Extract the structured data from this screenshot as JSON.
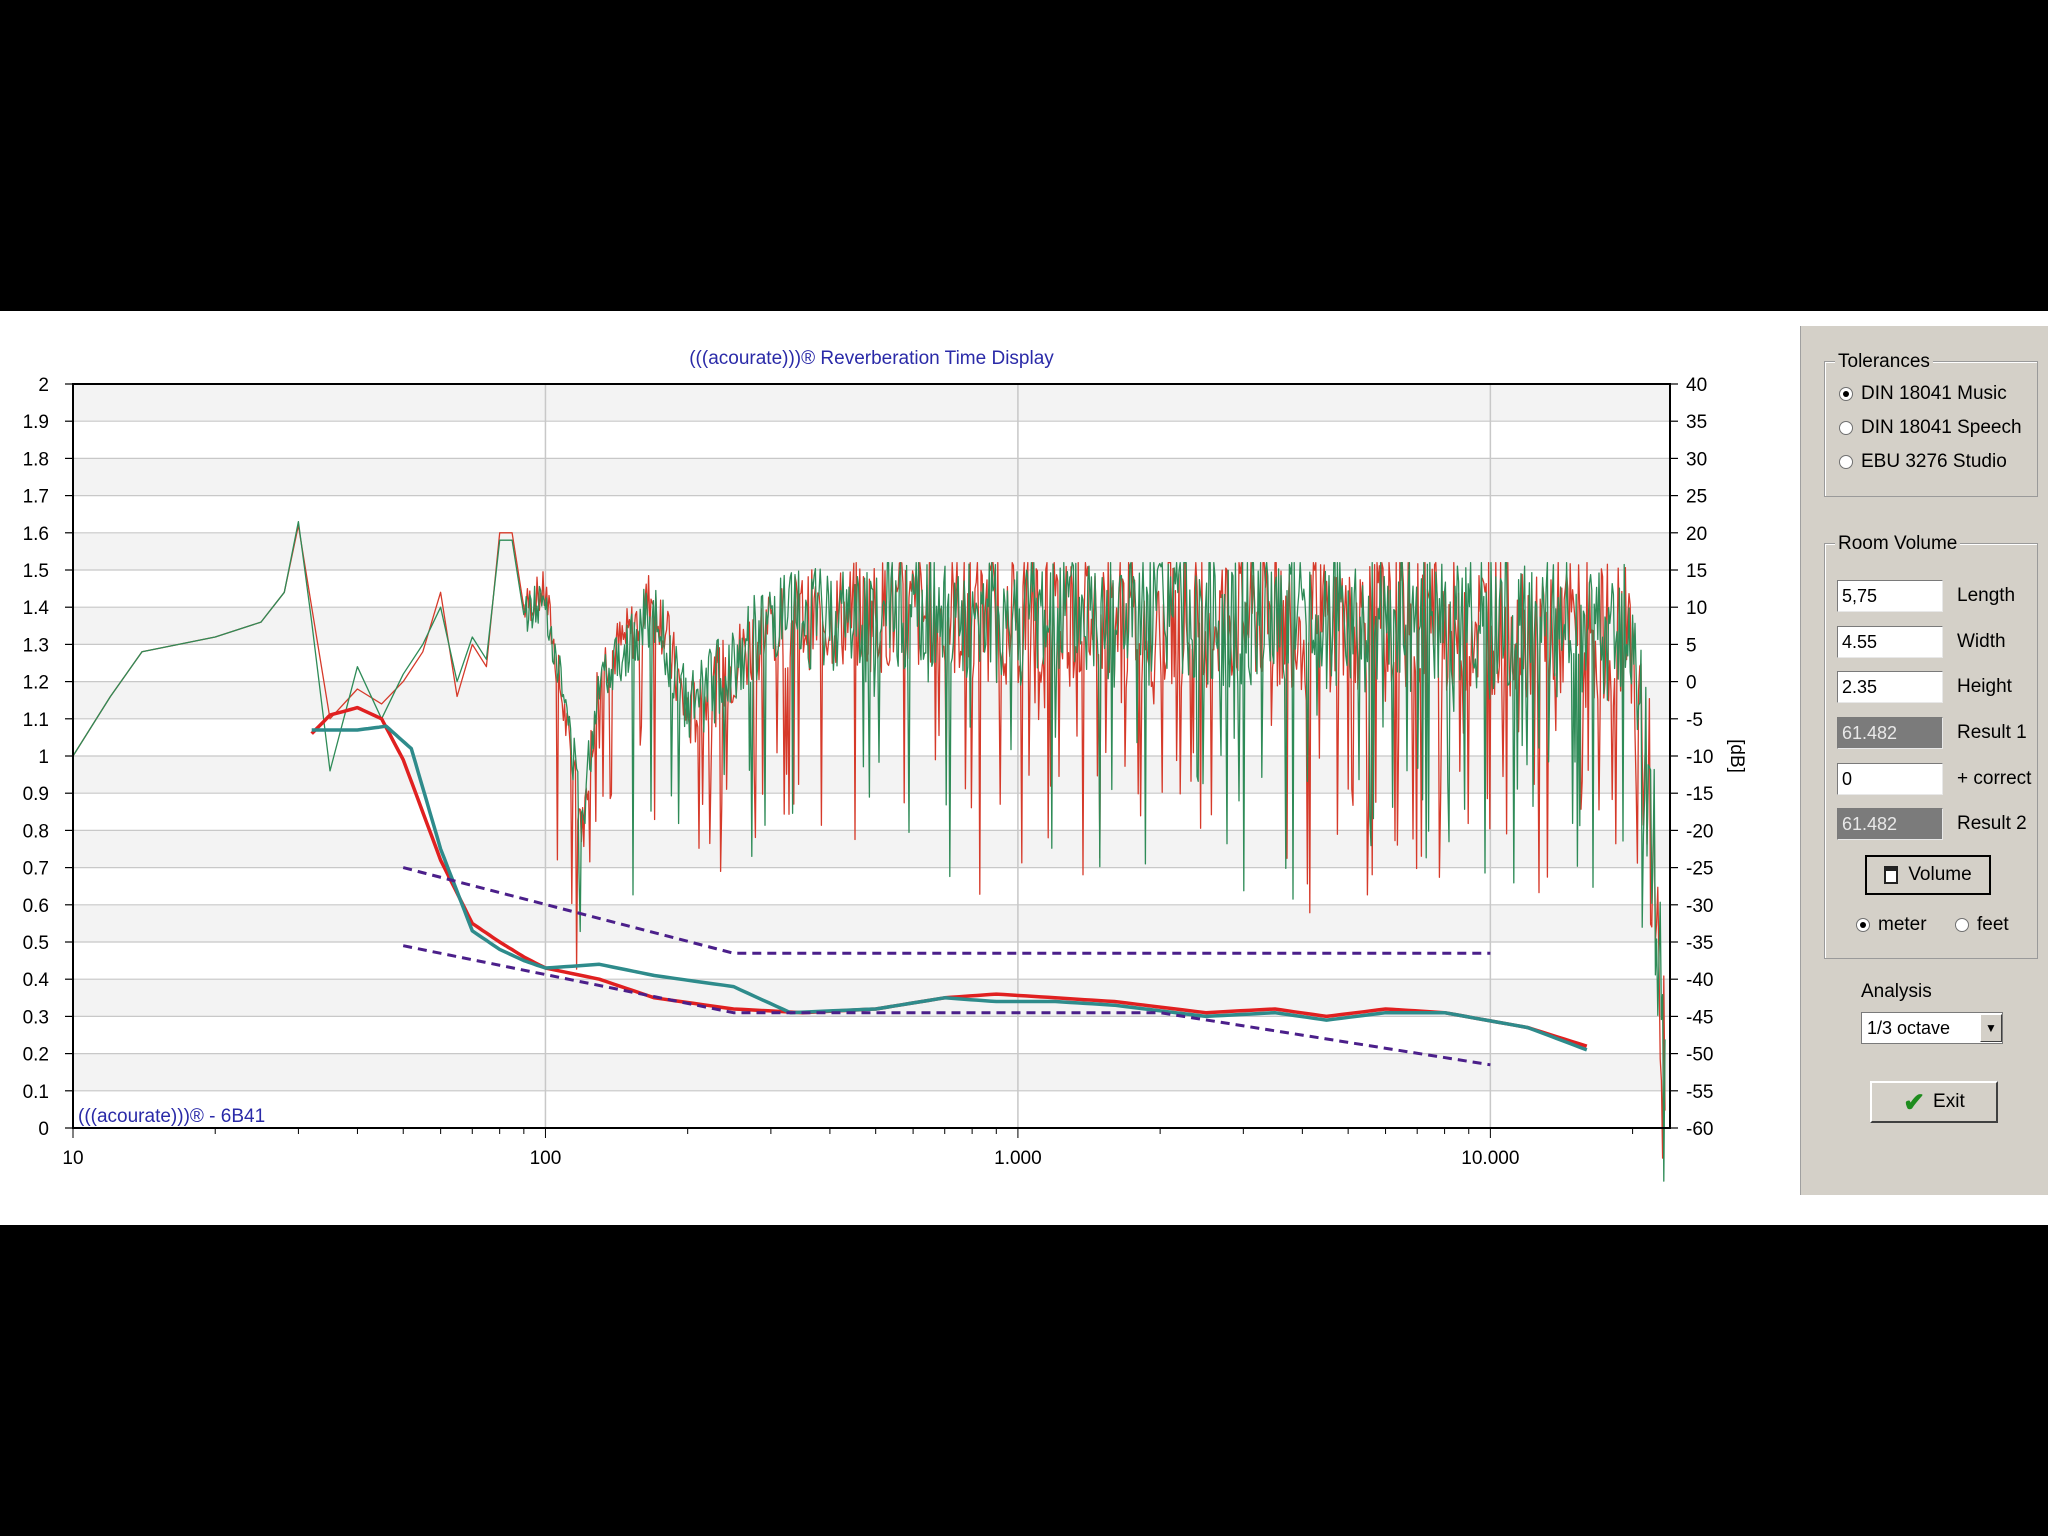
{
  "chart_data": {
    "type": "line",
    "title": "(((acourate)))® Reverberation Time Display",
    "watermark": "(((acourate)))® - 6B41",
    "x_scale": "log",
    "xlim": [
      10,
      24000
    ],
    "x_ticks": [
      {
        "value": 10,
        "label": "10"
      },
      {
        "value": 100,
        "label": "100"
      },
      {
        "value": 1000,
        "label": "1.000"
      },
      {
        "value": 10000,
        "label": "10.000"
      }
    ],
    "y_left": {
      "lim": [
        0,
        2
      ],
      "ticks": [
        "0",
        "0.1",
        "0.2",
        "0.3",
        "0.4",
        "0.5",
        "0.6",
        "0.7",
        "0.8",
        "0.9",
        "1",
        "1.1",
        "1.2",
        "1.3",
        "1.4",
        "1.5",
        "1.6",
        "1.7",
        "1.8",
        "1.9",
        "2"
      ]
    },
    "y_right": {
      "lim": [
        -60,
        40
      ],
      "label": "[dB]",
      "ticks": [
        "-60",
        "-55",
        "-50",
        "-45",
        "-40",
        "-35",
        "-30",
        "-25",
        "-20",
        "-15",
        "-10",
        "-5",
        "0",
        "5",
        "10",
        "15",
        "20",
        "25",
        "30",
        "35",
        "40"
      ]
    },
    "grid": true,
    "series": [
      {
        "axis": "left",
        "color": "#e02020",
        "width": 3.5,
        "points": [
          [
            32,
            1.06
          ],
          [
            35,
            1.11
          ],
          [
            40,
            1.13
          ],
          [
            45,
            1.1
          ],
          [
            50,
            0.99
          ],
          [
            60,
            0.72
          ],
          [
            70,
            0.55
          ],
          [
            80,
            0.5
          ],
          [
            90,
            0.46
          ],
          [
            100,
            0.43
          ],
          [
            130,
            0.4
          ],
          [
            170,
            0.35
          ],
          [
            250,
            0.32
          ],
          [
            350,
            0.31
          ],
          [
            500,
            0.32
          ],
          [
            700,
            0.35
          ],
          [
            900,
            0.36
          ],
          [
            1200,
            0.35
          ],
          [
            1600,
            0.34
          ],
          [
            2500,
            0.31
          ],
          [
            3500,
            0.32
          ],
          [
            4500,
            0.3
          ],
          [
            6000,
            0.32
          ],
          [
            8000,
            0.31
          ],
          [
            12000,
            0.27
          ],
          [
            16000,
            0.22
          ]
        ]
      },
      {
        "axis": "left",
        "color": "#2e8b8b",
        "width": 3.5,
        "points": [
          [
            32,
            1.07
          ],
          [
            40,
            1.07
          ],
          [
            46,
            1.08
          ],
          [
            52,
            1.02
          ],
          [
            60,
            0.75
          ],
          [
            70,
            0.53
          ],
          [
            80,
            0.48
          ],
          [
            90,
            0.45
          ],
          [
            100,
            0.43
          ],
          [
            130,
            0.44
          ],
          [
            170,
            0.41
          ],
          [
            250,
            0.38
          ],
          [
            330,
            0.31
          ],
          [
            500,
            0.32
          ],
          [
            700,
            0.35
          ],
          [
            900,
            0.34
          ],
          [
            1200,
            0.34
          ],
          [
            1600,
            0.33
          ],
          [
            2500,
            0.3
          ],
          [
            3500,
            0.31
          ],
          [
            4500,
            0.29
          ],
          [
            6000,
            0.31
          ],
          [
            8000,
            0.31
          ],
          [
            12000,
            0.27
          ],
          [
            16000,
            0.21
          ]
        ]
      },
      {
        "axis": "left",
        "color": "#4b1f8a",
        "dash": true,
        "width": 3,
        "points": [
          [
            50,
            0.7
          ],
          [
            250,
            0.47
          ],
          [
            10000,
            0.47
          ]
        ]
      },
      {
        "axis": "left",
        "color": "#4b1f8a",
        "dash": true,
        "width": 3,
        "points": [
          [
            50,
            0.49
          ],
          [
            250,
            0.31
          ],
          [
            2000,
            0.31
          ],
          [
            10000,
            0.17
          ]
        ]
      },
      {
        "axis": "right",
        "color": "#d63a2a",
        "width": 1.3,
        "noise": true,
        "seed": 7,
        "noise_from": 90,
        "points": [
          [
            10,
            -10
          ],
          [
            12,
            -2
          ],
          [
            14,
            4
          ],
          [
            20,
            6
          ],
          [
            25,
            8
          ],
          [
            28,
            12
          ],
          [
            30,
            21
          ],
          [
            32,
            10
          ],
          [
            35,
            -5
          ],
          [
            40,
            -1
          ],
          [
            45,
            -3
          ],
          [
            50,
            0
          ],
          [
            55,
            4
          ],
          [
            60,
            12
          ],
          [
            65,
            -2
          ],
          [
            70,
            5
          ],
          [
            75,
            2
          ],
          [
            80,
            20
          ],
          [
            85,
            20
          ],
          [
            90,
            10
          ],
          [
            100,
            12
          ],
          [
            110,
            -5
          ],
          [
            120,
            -20
          ],
          [
            130,
            2
          ],
          [
            150,
            6
          ],
          [
            170,
            12
          ],
          [
            200,
            -5
          ],
          [
            300,
            8
          ],
          [
            500,
            9
          ],
          [
            1000,
            9
          ],
          [
            3000,
            9
          ],
          [
            6000,
            8
          ],
          [
            10000,
            8
          ],
          [
            15000,
            7
          ],
          [
            20000,
            6
          ],
          [
            22000,
            -20
          ],
          [
            23500,
            -60
          ]
        ]
      },
      {
        "axis": "right",
        "color": "#2e8b57",
        "width": 1.3,
        "noise": true,
        "seed": 13,
        "noise_from": 90,
        "points": [
          [
            10,
            -10
          ],
          [
            12,
            -2
          ],
          [
            14,
            4
          ],
          [
            20,
            6
          ],
          [
            25,
            8
          ],
          [
            28,
            12
          ],
          [
            30,
            21.5
          ],
          [
            32,
            8
          ],
          [
            35,
            -12
          ],
          [
            40,
            2
          ],
          [
            45,
            -5
          ],
          [
            50,
            1
          ],
          [
            55,
            5
          ],
          [
            60,
            10
          ],
          [
            65,
            0
          ],
          [
            70,
            6
          ],
          [
            75,
            3
          ],
          [
            80,
            19
          ],
          [
            85,
            19
          ],
          [
            90,
            9
          ],
          [
            100,
            11
          ],
          [
            110,
            -3
          ],
          [
            120,
            -18
          ],
          [
            130,
            1
          ],
          [
            150,
            5
          ],
          [
            170,
            10
          ],
          [
            200,
            -4
          ],
          [
            300,
            8
          ],
          [
            500,
            9
          ],
          [
            1000,
            9
          ],
          [
            3000,
            9
          ],
          [
            6000,
            8
          ],
          [
            10000,
            8
          ],
          [
            15000,
            7
          ],
          [
            20000,
            6
          ],
          [
            22000,
            -20
          ],
          [
            23500,
            -60
          ]
        ]
      }
    ]
  },
  "panel": {
    "tolerances": {
      "title": "Tolerances",
      "options": [
        {
          "label": "DIN 18041 Music",
          "checked": true
        },
        {
          "label": "DIN 18041 Speech",
          "checked": false
        },
        {
          "label": "EBU 3276 Studio",
          "checked": false
        }
      ]
    },
    "room_volume": {
      "title": "Room Volume",
      "length": {
        "value": "5,75",
        "label": "Length"
      },
      "width": {
        "value": "4.55",
        "label": "Width"
      },
      "height": {
        "value": "2.35",
        "label": "Height"
      },
      "result1": {
        "value": "61.482",
        "label": "Result 1"
      },
      "correct": {
        "value": "0",
        "label": "+ correct"
      },
      "result2": {
        "value": "61.482",
        "label": "Result 2"
      },
      "volume_button": "Volume",
      "units": [
        {
          "label": "meter",
          "checked": true
        },
        {
          "label": "feet",
          "checked": false
        }
      ]
    },
    "analysis": {
      "label": "Analysis",
      "value": "1/3 octave"
    },
    "exit_button": "Exit"
  }
}
